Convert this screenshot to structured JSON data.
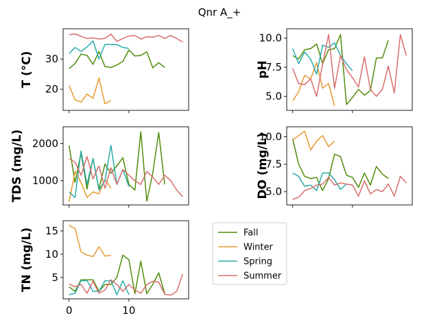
{
  "figure": {
    "title": "Qnr A_+"
  },
  "legend": {
    "placement": "center-right"
  },
  "chart_data": [
    {
      "type": "line",
      "ylabel": "T  (°C)",
      "xlim": [
        -1,
        20
      ],
      "ylim": [
        13,
        40
      ],
      "yticks": [
        20,
        30
      ],
      "xticks": [
        0,
        10
      ],
      "show_xticklabels": false,
      "series": [
        {
          "name": "Fall",
          "color": "#4e8c0a",
          "x": [
            0,
            1,
            2,
            3,
            4,
            5,
            6,
            7,
            8,
            9,
            10,
            11,
            12,
            13,
            14,
            15,
            16
          ],
          "values": [
            26.8,
            28.5,
            31.6,
            31.2,
            28.2,
            32.5,
            27.5,
            27.2,
            28.0,
            29.2,
            33.0,
            31.0,
            31.2,
            32.4,
            27.1,
            28.8,
            27.2
          ]
        },
        {
          "name": "Winter",
          "color": "#e59a2e",
          "x": [
            0,
            1,
            2,
            3,
            4,
            5,
            6,
            7
          ],
          "values": [
            21.2,
            16.5,
            15.7,
            18.4,
            17.0,
            23.7,
            15.2,
            16.2
          ]
        },
        {
          "name": "Spring",
          "color": "#2aabaa",
          "x": [
            0,
            1,
            2,
            3,
            4,
            5,
            6,
            7,
            8,
            9,
            10
          ],
          "values": [
            31.8,
            33.8,
            32.5,
            34.0,
            36.0,
            30.0,
            34.8,
            34.8,
            34.8,
            33.8,
            33.5
          ]
        },
        {
          "name": "Summer",
          "color": "#d96c6c",
          "x": [
            0,
            1,
            2,
            3,
            4,
            5,
            6,
            7,
            8,
            9,
            10,
            11,
            12,
            13,
            14,
            15,
            16,
            17,
            18,
            19
          ],
          "values": [
            38.0,
            38.3,
            37.5,
            36.8,
            37.0,
            36.6,
            36.8,
            38.2,
            35.8,
            36.8,
            37.6,
            37.8,
            36.6,
            37.4,
            37.2,
            37.8,
            36.8,
            37.8,
            36.8,
            35.6
          ]
        }
      ]
    },
    {
      "type": "line",
      "ylabel": "pH",
      "xlim": [
        -1,
        20
      ],
      "ylim": [
        3.8,
        10.8
      ],
      "yticks": [
        5.0,
        7.5,
        10.0
      ],
      "ytick_labels": [
        "5.0",
        "7.5",
        "10.0"
      ],
      "xticks": [
        0,
        10
      ],
      "show_xticklabels": false,
      "series": [
        {
          "name": "Fall",
          "color": "#4e8c0a",
          "x": [
            0,
            1,
            2,
            3,
            4,
            5,
            6,
            7,
            8,
            9,
            10,
            11,
            12,
            13,
            14,
            15,
            16
          ],
          "values": [
            8.5,
            8.2,
            9.0,
            9.1,
            9.5,
            7.8,
            9.0,
            9.1,
            10.3,
            4.3,
            4.9,
            5.6,
            5.1,
            5.5,
            8.3,
            8.3,
            9.8
          ]
        },
        {
          "name": "Winter",
          "color": "#e59a2e",
          "x": [
            0,
            1,
            2,
            3,
            4,
            5,
            6,
            7
          ],
          "values": [
            4.6,
            5.4,
            6.8,
            6.5,
            7.9,
            5.7,
            6.1,
            4.2
          ]
        },
        {
          "name": "Spring",
          "color": "#2aabaa",
          "x": [
            0,
            1,
            2,
            3,
            4,
            5,
            6,
            7,
            8,
            9,
            10
          ],
          "values": [
            9.1,
            7.8,
            8.8,
            8.2,
            6.9,
            9.4,
            9.2,
            9.6,
            8.5,
            7.8,
            7.2
          ]
        },
        {
          "name": "Summer",
          "color": "#d96c6c",
          "x": [
            0,
            1,
            2,
            3,
            4,
            5,
            6,
            7,
            8,
            9,
            10,
            11,
            12,
            13,
            14,
            15,
            16,
            17,
            18,
            19
          ],
          "values": [
            7.4,
            6.1,
            6.0,
            6.5,
            5.0,
            7.8,
            10.3,
            5.7,
            8.5,
            7.3,
            6.6,
            5.8,
            8.4,
            5.6,
            5.0,
            5.6,
            7.6,
            5.3,
            10.3,
            8.5
          ]
        }
      ]
    },
    {
      "type": "line",
      "ylabel": "TDS (mg/L)",
      "xlim": [
        -1,
        20
      ],
      "ylim": [
        350,
        2450
      ],
      "yticks": [
        1000,
        2000
      ],
      "xticks": [
        0,
        10
      ],
      "show_xticklabels": false,
      "series": [
        {
          "name": "Fall",
          "color": "#4e8c0a",
          "x": [
            0,
            1,
            2,
            3,
            4,
            5,
            6,
            7,
            8,
            9,
            10,
            11,
            12,
            13,
            14,
            15,
            16
          ],
          "values": [
            1950,
            950,
            1750,
            780,
            1600,
            780,
            1450,
            1200,
            1400,
            1620,
            900,
            750,
            2320,
            450,
            1200,
            2300,
            900
          ]
        },
        {
          "name": "Winter",
          "color": "#e59a2e",
          "x": [
            0,
            1,
            2,
            3,
            4,
            5,
            6,
            7
          ],
          "values": [
            430,
            1250,
            960,
            550,
            700,
            650,
            1030,
            800
          ]
        },
        {
          "name": "Spring",
          "color": "#2aabaa",
          "x": [
            0,
            1,
            2,
            3,
            4,
            5,
            6,
            7,
            8,
            9,
            10
          ],
          "values": [
            700,
            550,
            1800,
            900,
            1600,
            750,
            1000,
            1950,
            900,
            1300,
            850
          ]
        },
        {
          "name": "Summer",
          "color": "#d96c6c",
          "x": [
            0,
            1,
            2,
            3,
            4,
            5,
            6,
            7,
            8,
            9,
            10,
            11,
            12,
            13,
            14,
            15,
            16,
            17,
            18,
            19
          ],
          "values": [
            1600,
            1500,
            1150,
            1650,
            1050,
            1400,
            800,
            1350,
            900,
            1300,
            1150,
            1000,
            900,
            1250,
            1100,
            900,
            1150,
            1000,
            750,
            570
          ]
        }
      ]
    },
    {
      "type": "line",
      "ylabel": "DO (mg/L)",
      "xlim": [
        -1,
        20
      ],
      "ylim": [
        3.8,
        10.9
      ],
      "yticks": [
        5.0,
        7.5,
        10.0
      ],
      "ytick_labels": [
        "5.0",
        "7.5",
        "10.0"
      ],
      "xticks": [
        0,
        10
      ],
      "show_xticklabels": false,
      "series": [
        {
          "name": "Fall",
          "color": "#4e8c0a",
          "x": [
            0,
            1,
            2,
            3,
            4,
            5,
            6,
            7,
            8,
            9,
            10,
            11,
            12,
            13,
            14,
            15,
            16
          ],
          "values": [
            9.8,
            7.5,
            6.4,
            6.2,
            6.3,
            5.1,
            6.2,
            8.4,
            8.2,
            6.5,
            6.3,
            5.4,
            6.7,
            5.6,
            7.3,
            6.6,
            6.2
          ]
        },
        {
          "name": "Winter",
          "color": "#e59a2e",
          "x": [
            0,
            1,
            2,
            3,
            4,
            5,
            6,
            7
          ],
          "values": [
            9.7,
            10.1,
            10.5,
            8.8,
            9.6,
            10.1,
            9.1,
            9.6
          ]
        },
        {
          "name": "Spring",
          "color": "#2aabaa",
          "x": [
            0,
            1,
            2,
            3,
            4,
            5,
            6,
            7,
            8,
            9,
            10
          ],
          "values": [
            6.7,
            6.4,
            5.5,
            5.6,
            5.1,
            6.7,
            6.7,
            6.1,
            5.2,
            5.7,
            5.6
          ]
        },
        {
          "name": "Summer",
          "color": "#d96c6c",
          "x": [
            0,
            1,
            2,
            3,
            4,
            5,
            6,
            7,
            8,
            9,
            10,
            11,
            12,
            13,
            14,
            15,
            16,
            17,
            18,
            19
          ],
          "values": [
            4.3,
            4.5,
            5.1,
            5.3,
            5.6,
            5.7,
            6.3,
            5.6,
            5.8,
            5.7,
            5.6,
            4.6,
            6.0,
            4.8,
            5.2,
            5.0,
            5.7,
            4.6,
            6.4,
            5.8
          ]
        }
      ]
    },
    {
      "type": "line",
      "ylabel": "TN (mg/L)",
      "xlim": [
        -1,
        20
      ],
      "ylim": [
        0.4,
        17.2
      ],
      "yticks": [
        5,
        10,
        15
      ],
      "xticks": [
        0,
        10
      ],
      "show_xticklabels": true,
      "series": [
        {
          "name": "Fall",
          "color": "#4e8c0a",
          "x": [
            0,
            1,
            2,
            3,
            4,
            5,
            6,
            7,
            8,
            9,
            10,
            11,
            12,
            13,
            14,
            15,
            16
          ],
          "values": [
            3.0,
            2.0,
            4.5,
            4.5,
            4.5,
            2.0,
            3.5,
            3.5,
            5.0,
            9.8,
            8.8,
            1.5,
            8.5,
            1.5,
            3.5,
            6.0,
            1.5
          ]
        },
        {
          "name": "Winter",
          "color": "#e59a2e",
          "x": [
            0,
            1,
            2,
            3,
            4,
            5,
            6,
            7
          ],
          "values": [
            16.2,
            15.5,
            10.5,
            9.8,
            9.5,
            11.6,
            9.6,
            9.8
          ]
        },
        {
          "name": "Spring",
          "color": "#2aabaa",
          "x": [
            0,
            1,
            2,
            3,
            4,
            5,
            6,
            7,
            8,
            9,
            10
          ],
          "values": [
            1.3,
            1.6,
            4.3,
            4.3,
            2.0,
            2.0,
            4.3,
            4.3,
            1.3,
            4.3,
            1.3
          ]
        },
        {
          "name": "Summer",
          "color": "#d96c6c",
          "x": [
            0,
            1,
            2,
            3,
            4,
            5,
            6,
            7,
            8,
            9,
            10,
            11,
            12,
            13,
            14,
            15,
            16,
            17,
            18,
            19
          ],
          "values": [
            3.6,
            3.0,
            3.5,
            1.6,
            4.2,
            1.6,
            2.3,
            4.5,
            3.5,
            2.0,
            3.5,
            2.3,
            1.6,
            3.5,
            4.2,
            4.0,
            1.4,
            1.2,
            2.0,
            5.7
          ]
        }
      ]
    }
  ]
}
